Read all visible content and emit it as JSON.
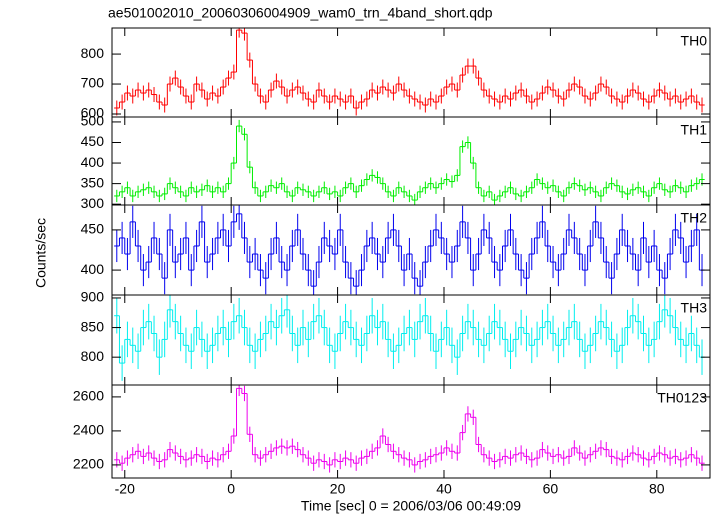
{
  "chart_data": {
    "type": "step",
    "title": "ae501002010_20060306004909_wam0_trn_4band_short.qdp",
    "xlabel": "Time [sec] 0 = 2006/03/06 00:49:09",
    "ylabel": "Counts/sec",
    "xlim": [
      -22.4,
      90
    ],
    "xticks": [
      -20,
      0,
      20,
      40,
      60,
      80
    ],
    "x": [
      -21.5,
      -20.5,
      -19.5,
      -18.5,
      -17.5,
      -16.5,
      -15.5,
      -14.5,
      -13.5,
      -12.5,
      -11.5,
      -10.5,
      -9.5,
      -8.5,
      -7.5,
      -6.5,
      -5.5,
      -4.5,
      -3.5,
      -2.5,
      -1.5,
      -0.5,
      0.5,
      1.5,
      2.5,
      3.5,
      4.5,
      5.5,
      6.5,
      7.5,
      8.5,
      9.5,
      10.5,
      11.5,
      12.5,
      13.5,
      14.5,
      15.5,
      16.5,
      17.5,
      18.5,
      19.5,
      20.5,
      21.5,
      22.5,
      23.5,
      24.5,
      25.5,
      26.5,
      27.5,
      28.5,
      29.5,
      30.5,
      31.5,
      32.5,
      33.5,
      34.5,
      35.5,
      36.5,
      37.5,
      38.5,
      39.5,
      40.5,
      41.5,
      42.5,
      43.5,
      44.5,
      45.5,
      46.5,
      47.5,
      48.5,
      49.5,
      50.5,
      51.5,
      52.5,
      53.5,
      54.5,
      55.5,
      56.5,
      57.5,
      58.5,
      59.5,
      60.5,
      61.5,
      62.5,
      63.5,
      64.5,
      65.5,
      66.5,
      67.5,
      68.5,
      69.5,
      70.5,
      71.5,
      72.5,
      73.5,
      74.5,
      75.5,
      76.5,
      77.5,
      78.5,
      79.5,
      80.5,
      81.5,
      82.5,
      83.5,
      84.5,
      85.5,
      86.5,
      87.5,
      88.5
    ],
    "panels": [
      {
        "label": "TH0",
        "color": "#ff0000",
        "yerr": 25,
        "ylim": [
          590,
          887
        ],
        "yticks": [
          600,
          700,
          800
        ],
        "values": [
          620,
          640,
          670,
          660,
          680,
          670,
          680,
          665,
          640,
          630,
          700,
          720,
          690,
          660,
          640,
          700,
          680,
          650,
          670,
          660,
          690,
          720,
          740,
          880,
          870,
          780,
          700,
          660,
          640,
          680,
          710,
          690,
          660,
          680,
          690,
          670,
          650,
          640,
          680,
          660,
          640,
          660,
          650,
          640,
          660,
          620,
          640,
          650,
          680,
          670,
          690,
          680,
          670,
          700,
          680,
          660,
          650,
          640,
          630,
          650,
          640,
          660,
          690,
          700,
          680,
          730,
          760,
          760,
          720,
          680,
          660,
          650,
          640,
          660,
          650,
          670,
          680,
          660,
          640,
          650,
          670,
          690,
          680,
          660,
          650,
          680,
          700,
          690,
          660,
          650,
          670,
          700,
          690,
          660,
          650,
          640,
          660,
          680,
          670,
          650,
          640,
          660,
          680,
          670,
          650,
          660,
          640,
          650,
          660,
          640,
          630
        ]
      },
      {
        "label": "TH1",
        "color": "#00ee00",
        "yerr": 15,
        "ylim": [
          298,
          512
        ],
        "yticks": [
          300,
          350,
          400,
          450,
          500
        ],
        "values": [
          320,
          330,
          340,
          320,
          330,
          335,
          340,
          330,
          320,
          325,
          350,
          340,
          330,
          320,
          340,
          330,
          335,
          345,
          330,
          340,
          330,
          350,
          400,
          490,
          470,
          390,
          340,
          320,
          330,
          345,
          340,
          350,
          330,
          320,
          340,
          335,
          330,
          320,
          330,
          340,
          325,
          330,
          320,
          340,
          350,
          330,
          345,
          360,
          370,
          365,
          350,
          330,
          320,
          340,
          330,
          320,
          310,
          330,
          340,
          350,
          340,
          350,
          360,
          355,
          370,
          440,
          450,
          400,
          340,
          320,
          330,
          310,
          320,
          330,
          340,
          325,
          320,
          330,
          340,
          360,
          350,
          340,
          345,
          330,
          320,
          340,
          350,
          345,
          335,
          340,
          330,
          320,
          340,
          350,
          345,
          330,
          325,
          335,
          340,
          330,
          320,
          340,
          350,
          335,
          330,
          345,
          340,
          330,
          345,
          350,
          360
        ]
      },
      {
        "label": "TH2",
        "color": "#0000ee",
        "yerr": 20,
        "ylim": [
          369,
          481
        ],
        "yticks": [
          400,
          450
        ],
        "values": [
          430,
          440,
          420,
          460,
          430,
          400,
          410,
          440,
          420,
          390,
          450,
          410,
          420,
          440,
          400,
          430,
          460,
          410,
          420,
          440,
          450,
          430,
          460,
          470,
          440,
          410,
          420,
          400,
          390,
          420,
          440,
          410,
          400,
          430,
          450,
          420,
          400,
          380,
          410,
          440,
          430,
          420,
          450,
          410,
          390,
          380,
          400,
          430,
          440,
          420,
          410,
          440,
          450,
          430,
          400,
          420,
          390,
          380,
          410,
          430,
          450,
          440,
          420,
          410,
          430,
          460,
          440,
          400,
          420,
          450,
          440,
          410,
          400,
          430,
          450,
          420,
          400,
          390,
          420,
          440,
          460,
          430,
          410,
          400,
          420,
          450,
          440,
          420,
          400,
          430,
          460,
          440,
          410,
          390,
          420,
          450,
          430,
          420,
          400,
          440,
          410,
          430,
          400,
          390,
          420,
          450,
          440,
          410,
          430,
          450,
          400
        ]
      },
      {
        "label": "TH3",
        "color": "#00eeee",
        "yerr": 30,
        "ylim": [
          753,
          905
        ],
        "yticks": [
          800,
          850,
          900
        ],
        "values": [
          870,
          790,
          830,
          820,
          810,
          850,
          860,
          840,
          800,
          830,
          880,
          860,
          840,
          820,
          810,
          850,
          830,
          810,
          820,
          840,
          850,
          830,
          860,
          870,
          850,
          820,
          810,
          830,
          840,
          860,
          850,
          870,
          880,
          840,
          820,
          850,
          830,
          860,
          870,
          850,
          820,
          810,
          840,
          860,
          850,
          830,
          820,
          840,
          870,
          850,
          860,
          830,
          810,
          820,
          840,
          850,
          830,
          860,
          870,
          840,
          810,
          830,
          850,
          820,
          800,
          840,
          860,
          850,
          830,
          820,
          840,
          860,
          850,
          830,
          810,
          830,
          850,
          840,
          820,
          830,
          850,
          860,
          840,
          820,
          830,
          850,
          860,
          830,
          810,
          820,
          840,
          860,
          850,
          830,
          810,
          820,
          850,
          870,
          860,
          840,
          820,
          830,
          860,
          880,
          870,
          850,
          830,
          820,
          840,
          820,
          800
        ]
      },
      {
        "label": "TH0123",
        "color": "#ee00ee",
        "yerr": 45,
        "ylim": [
          2123,
          2670
        ],
        "yticks": [
          2200,
          2400,
          2600
        ],
        "values": [
          2230,
          2210,
          2240,
          2260,
          2280,
          2250,
          2270,
          2240,
          2220,
          2230,
          2290,
          2270,
          2250,
          2230,
          2240,
          2260,
          2250,
          2220,
          2240,
          2230,
          2260,
          2280,
          2370,
          2650,
          2620,
          2380,
          2260,
          2240,
          2260,
          2280,
          2300,
          2310,
          2300,
          2310,
          2290,
          2260,
          2240,
          2210,
          2230,
          2220,
          2200,
          2230,
          2220,
          2240,
          2230,
          2210,
          2240,
          2250,
          2280,
          2300,
          2370,
          2320,
          2280,
          2260,
          2240,
          2230,
          2200,
          2220,
          2230,
          2250,
          2260,
          2270,
          2300,
          2280,
          2270,
          2390,
          2500,
          2480,
          2320,
          2260,
          2240,
          2220,
          2230,
          2250,
          2240,
          2260,
          2270,
          2250,
          2230,
          2240,
          2290,
          2270,
          2250,
          2260,
          2240,
          2250,
          2300,
          2270,
          2240,
          2260,
          2280,
          2300,
          2290,
          2250,
          2240,
          2230,
          2250,
          2270,
          2260,
          2240,
          2230,
          2250,
          2270,
          2260,
          2240,
          2250,
          2230,
          2240,
          2260,
          2240,
          2210
        ]
      }
    ]
  }
}
